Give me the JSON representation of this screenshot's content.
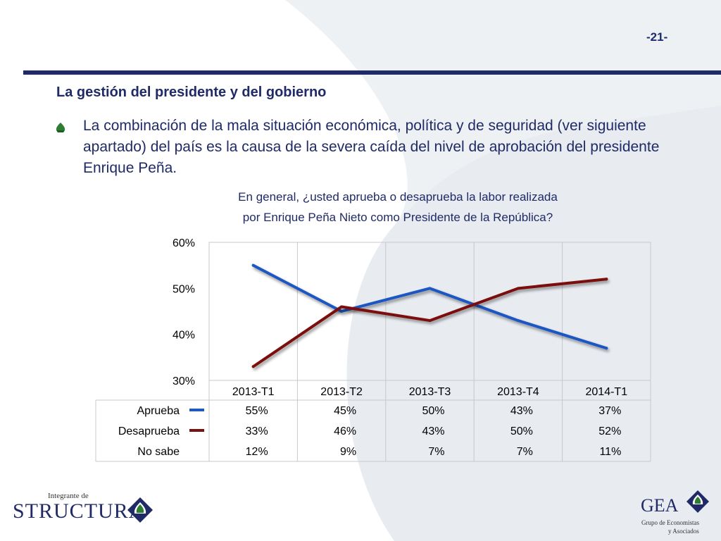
{
  "slide": {
    "page_number": "-21-",
    "heading": "La gestión del presidente y del gobierno",
    "bullet_text": "La combinación de la mala situación económica, política y de seguridad (ver siguiente apartado) del país es la causa de la severa caída del nivel de aprobación del presidente Enrique Peña.",
    "question_line1": "En general, ¿usted aprueba o desaprueba la labor realizada",
    "question_line2": "por Enrique Peña Nieto como Presidente de la República?"
  },
  "logos": {
    "left_small": "Integrante de",
    "left_big": "STRUCTURA",
    "right_big": "GEA",
    "right_sub1": "Grupo de Economistas",
    "right_sub2": "y Asociados"
  },
  "colors": {
    "navy": "#1f2a66",
    "aprueba": "#1f57c3",
    "desaprueba": "#7b1010",
    "green": "#2e7d32"
  },
  "chart_data": {
    "type": "line",
    "categories": [
      "2013-T1",
      "2013-T2",
      "2013-T3",
      "2013-T4",
      "2014-T1"
    ],
    "y_ticks": [
      "60%",
      "50%",
      "40%",
      "30%"
    ],
    "ylim": [
      30,
      60
    ],
    "grid": "vertical",
    "series": [
      {
        "name": "Aprueba",
        "values": [
          55,
          45,
          50,
          43,
          37
        ],
        "labels": [
          "55%",
          "45%",
          "50%",
          "43%",
          "37%"
        ],
        "color": "#1f57c3"
      },
      {
        "name": "Desaprueba",
        "values": [
          33,
          46,
          43,
          50,
          52
        ],
        "labels": [
          "33%",
          "46%",
          "43%",
          "50%",
          "52%"
        ],
        "color": "#7b1010"
      }
    ],
    "table_rows": [
      {
        "name": "Aprueba",
        "values": [
          "55%",
          "45%",
          "50%",
          "43%",
          "37%"
        ],
        "has_line": true,
        "color": "#1f57c3"
      },
      {
        "name": "Desaprueba",
        "values": [
          "33%",
          "46%",
          "43%",
          "50%",
          "52%"
        ],
        "has_line": true,
        "color": "#7b1010"
      },
      {
        "name": "No sabe",
        "values": [
          "12%",
          "9%",
          "7%",
          "7%",
          "11%"
        ],
        "has_line": false
      }
    ]
  }
}
